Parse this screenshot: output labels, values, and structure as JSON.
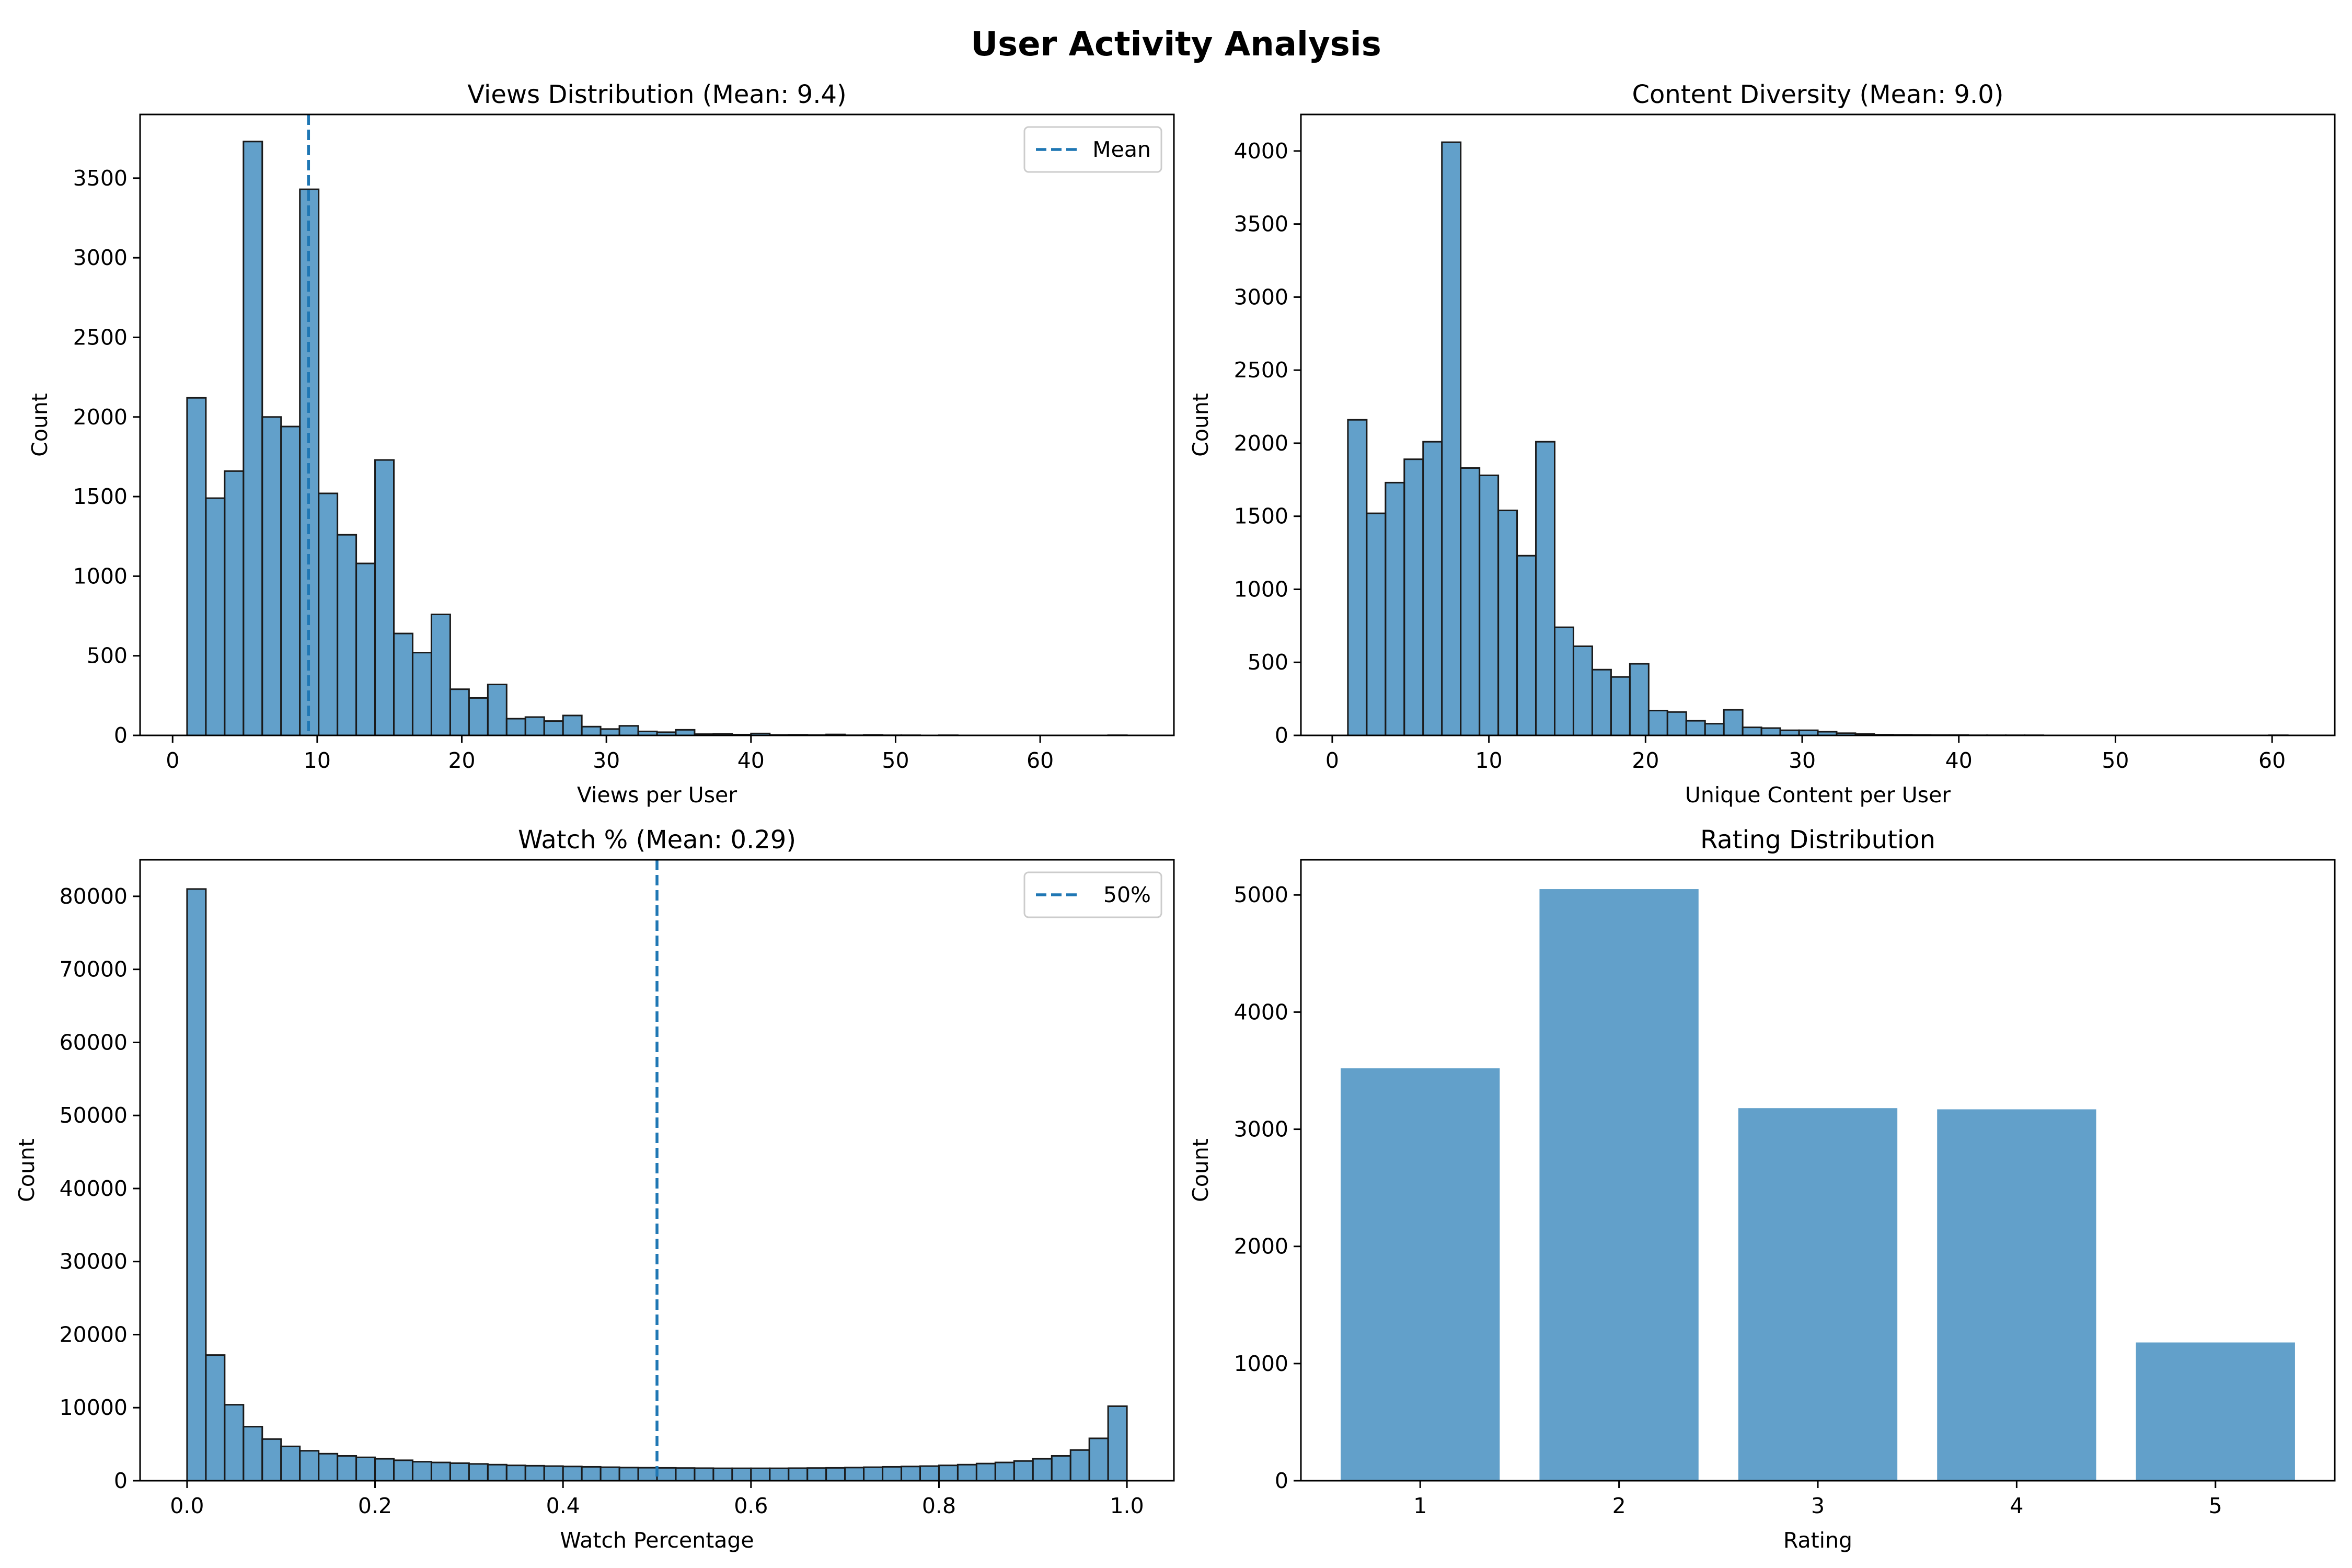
{
  "figure": {
    "title": "User Activity Analysis"
  },
  "colors": {
    "bar": "#1f77b4",
    "edge": "#1a1a1a",
    "mean_line": "#1f77b4"
  },
  "chart_data": [
    {
      "type": "bar",
      "title": "Views Distribution (Mean: 9.4)",
      "xlabel": "Views per User",
      "ylabel": "Count",
      "xlim": [
        -2.25,
        69.25
      ],
      "ylim": [
        0,
        3900
      ],
      "xticks": [
        0,
        10,
        20,
        30,
        40,
        50,
        60
      ],
      "yticks": [
        0,
        500,
        1000,
        1500,
        2000,
        2500,
        3000,
        3500
      ],
      "bin_start": 1,
      "bin_width": 1.3,
      "values": [
        2120,
        1490,
        1660,
        3730,
        2000,
        1940,
        3430,
        1520,
        1260,
        1080,
        1730,
        640,
        520,
        760,
        290,
        235,
        320,
        105,
        115,
        90,
        125,
        55,
        40,
        60,
        25,
        20,
        35,
        8,
        10,
        5,
        12,
        3,
        4,
        2,
        6,
        1,
        3,
        1,
        1,
        0,
        1,
        0,
        0,
        0,
        0,
        0,
        0,
        0,
        0,
        1
      ],
      "mean_line": {
        "x": 9.4,
        "label": "Mean"
      },
      "legend": "top-right",
      "grid": false
    },
    {
      "type": "bar",
      "title": "Content Diversity (Mean: 9.0)",
      "xlabel": "Unique Content per User",
      "ylabel": "Count",
      "xlim": [
        -2.0,
        64.0
      ],
      "ylim": [
        0,
        4250
      ],
      "xticks": [
        0,
        10,
        20,
        30,
        40,
        50,
        60
      ],
      "yticks": [
        0,
        500,
        1000,
        1500,
        2000,
        2500,
        3000,
        3500,
        4000
      ],
      "bin_start": 1,
      "bin_width": 1.2,
      "values": [
        2160,
        1520,
        1730,
        1890,
        2010,
        4060,
        1830,
        1780,
        1540,
        1230,
        2010,
        740,
        610,
        450,
        400,
        490,
        170,
        160,
        100,
        80,
        175,
        55,
        50,
        35,
        35,
        25,
        15,
        10,
        5,
        4,
        3,
        2,
        2,
        1,
        1,
        1,
        1,
        0,
        0,
        0,
        0,
        0,
        0,
        0,
        0,
        0,
        0,
        0,
        0,
        1
      ],
      "legend": "none",
      "grid": false
    },
    {
      "type": "bar",
      "title": "Watch % (Mean: 0.29)",
      "xlabel": "Watch Percentage",
      "ylabel": "Count",
      "xlim": [
        -0.05,
        1.05
      ],
      "ylim": [
        0,
        85000
      ],
      "xticks": [
        0.0,
        0.2,
        0.4,
        0.6,
        0.8,
        1.0
      ],
      "xtick_labels": [
        "0.0",
        "0.2",
        "0.4",
        "0.6",
        "0.8",
        "1.0"
      ],
      "yticks": [
        0,
        10000,
        20000,
        30000,
        40000,
        50000,
        60000,
        70000,
        80000
      ],
      "bin_start": 0,
      "bin_width": 0.02,
      "values": [
        81000,
        17200,
        10400,
        7400,
        5700,
        4700,
        4100,
        3700,
        3400,
        3200,
        3000,
        2800,
        2600,
        2500,
        2400,
        2300,
        2200,
        2100,
        2050,
        2000,
        1950,
        1900,
        1850,
        1800,
        1780,
        1760,
        1740,
        1720,
        1700,
        1700,
        1700,
        1700,
        1720,
        1740,
        1760,
        1800,
        1850,
        1900,
        1950,
        2000,
        2100,
        2200,
        2350,
        2500,
        2700,
        3000,
        3400,
        4200,
        5800,
        10200
      ],
      "mean_line": {
        "x": 0.5,
        "label": "50%"
      },
      "legend": "top-right",
      "grid": false
    },
    {
      "type": "bar",
      "title": "Rating Distribution",
      "xlabel": "Rating",
      "ylabel": "Count",
      "xlim": [
        0.4,
        5.6
      ],
      "ylim": [
        0,
        5300
      ],
      "categories": [
        "1",
        "2",
        "3",
        "4",
        "5"
      ],
      "values": [
        3520,
        5050,
        3180,
        3170,
        1180
      ],
      "yticks": [
        0,
        1000,
        2000,
        3000,
        4000,
        5000
      ],
      "legend": "none",
      "grid": false
    }
  ]
}
